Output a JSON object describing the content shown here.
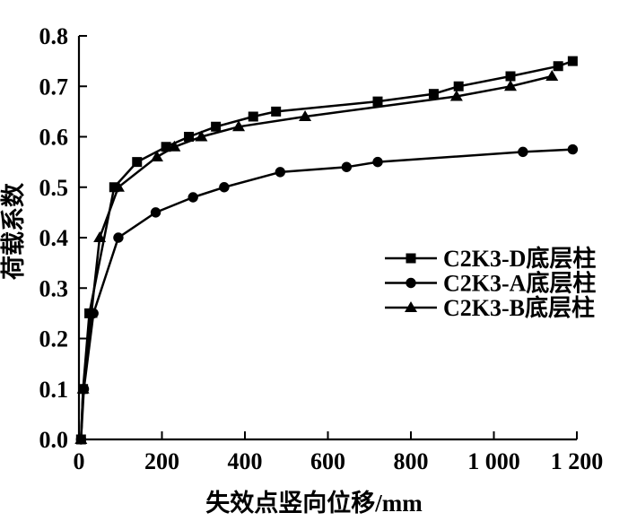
{
  "figure": {
    "background_color": "#ffffff",
    "ink_color": "#000000"
  },
  "chart_data": {
    "type": "line",
    "title": "",
    "xlabel": "失效点竖向位移/mm",
    "ylabel": "荷载系数",
    "xlim": [
      0,
      1200
    ],
    "ylim": [
      0.0,
      0.8
    ],
    "x_ticks": [
      0,
      200,
      400,
      600,
      800,
      1000,
      1200
    ],
    "x_tick_labels": [
      "0",
      "200",
      "400",
      "600",
      "800",
      "1 000",
      "1 200"
    ],
    "y_ticks": [
      0.0,
      0.1,
      0.2,
      0.3,
      0.4,
      0.5,
      0.6,
      0.7,
      0.8
    ],
    "y_tick_labels": [
      "0.0",
      "0.1",
      "0.2",
      "0.3",
      "0.4",
      "0.5",
      "0.6",
      "0.7",
      "0.8"
    ],
    "grid": false,
    "legend_position": "center-right",
    "series": [
      {
        "name": "C2K3-D底层柱",
        "marker": "square",
        "color": "#000000",
        "points": [
          [
            5,
            0.0
          ],
          [
            10,
            0.1
          ],
          [
            25,
            0.25
          ],
          [
            85,
            0.5
          ],
          [
            140,
            0.55
          ],
          [
            210,
            0.58
          ],
          [
            265,
            0.6
          ],
          [
            330,
            0.62
          ],
          [
            420,
            0.64
          ],
          [
            475,
            0.65
          ],
          [
            720,
            0.67
          ],
          [
            855,
            0.685
          ],
          [
            915,
            0.7
          ],
          [
            1040,
            0.72
          ],
          [
            1155,
            0.74
          ],
          [
            1190,
            0.75
          ]
        ]
      },
      {
        "name": "C2K3-A底层柱",
        "marker": "circle",
        "color": "#000000",
        "points": [
          [
            5,
            0.0
          ],
          [
            12,
            0.1
          ],
          [
            35,
            0.25
          ],
          [
            95,
            0.4
          ],
          [
            185,
            0.45
          ],
          [
            275,
            0.48
          ],
          [
            350,
            0.5
          ],
          [
            485,
            0.53
          ],
          [
            645,
            0.54
          ],
          [
            720,
            0.55
          ],
          [
            1070,
            0.57
          ],
          [
            1190,
            0.575
          ]
        ]
      },
      {
        "name": "C2K3-B底层柱",
        "marker": "triangle",
        "color": "#000000",
        "points": [
          [
            5,
            0.0
          ],
          [
            10,
            0.1
          ],
          [
            30,
            0.25
          ],
          [
            50,
            0.4
          ],
          [
            95,
            0.5
          ],
          [
            188,
            0.56
          ],
          [
            230,
            0.58
          ],
          [
            295,
            0.6
          ],
          [
            385,
            0.62
          ],
          [
            545,
            0.64
          ],
          [
            910,
            0.68
          ],
          [
            1040,
            0.7
          ],
          [
            1140,
            0.72
          ]
        ]
      }
    ]
  }
}
